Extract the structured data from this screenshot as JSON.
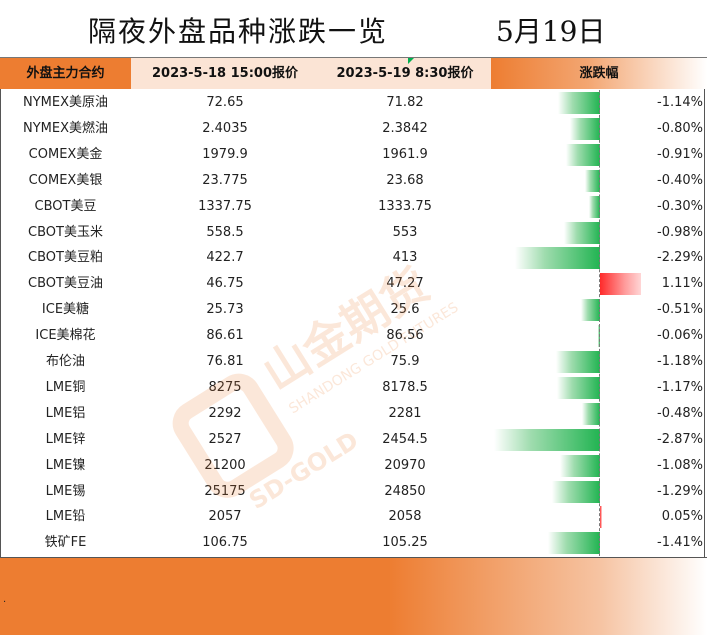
{
  "title": "隔夜外盘品种涨跌一览",
  "date": "5月19日",
  "footer_mark": ".",
  "watermark": {
    "brand": "山金期货",
    "sub": "SHANDONG GOLD FUTURES",
    "mark": "SD-GOLD"
  },
  "colors": {
    "header_orange": "#ed7d31",
    "header_peach": "#fbe4d5",
    "negative_green": "#22b452",
    "positive_red": "#ff2a2a"
  },
  "chart_data": {
    "type": "table",
    "columns": [
      "外盘主力合约",
      "2023-5-18 15:00报价",
      "2023-5-19 8:30报价",
      "涨跌幅"
    ],
    "rows": [
      {
        "name": "NYMEX美原油",
        "prev": "72.65",
        "curr": "71.82",
        "change": -1.14,
        "label": "-1.14%"
      },
      {
        "name": "NYMEX美燃油",
        "prev": "2.4035",
        "curr": "2.3842",
        "change": -0.8,
        "label": "-0.80%"
      },
      {
        "name": "COMEX美金",
        "prev": "1979.9",
        "curr": "1961.9",
        "change": -0.91,
        "label": "-0.91%"
      },
      {
        "name": "COMEX美银",
        "prev": "23.775",
        "curr": "23.68",
        "change": -0.4,
        "label": "-0.40%"
      },
      {
        "name": "CBOT美豆",
        "prev": "1337.75",
        "curr": "1333.75",
        "change": -0.3,
        "label": "-0.30%"
      },
      {
        "name": "CBOT美玉米",
        "prev": "558.5",
        "curr": "553",
        "change": -0.98,
        "label": "-0.98%"
      },
      {
        "name": "CBOT美豆粕",
        "prev": "422.7",
        "curr": "413",
        "change": -2.29,
        "label": "-2.29%"
      },
      {
        "name": "CBOT美豆油",
        "prev": "46.75",
        "curr": "47.27",
        "change": 1.11,
        "label": "1.11%"
      },
      {
        "name": "ICE美糖",
        "prev": "25.73",
        "curr": "25.6",
        "change": -0.51,
        "label": "-0.51%"
      },
      {
        "name": "ICE美棉花",
        "prev": "86.61",
        "curr": "86.56",
        "change": -0.06,
        "label": "-0.06%"
      },
      {
        "name": "布伦油",
        "prev": "76.81",
        "curr": "75.9",
        "change": -1.18,
        "label": "-1.18%"
      },
      {
        "name": "LME铜",
        "prev": "8275",
        "curr": "8178.5",
        "change": -1.17,
        "label": "-1.17%"
      },
      {
        "name": "LME铝",
        "prev": "2292",
        "curr": "2281",
        "change": -0.48,
        "label": "-0.48%"
      },
      {
        "name": "LME锌",
        "prev": "2527",
        "curr": "2454.5",
        "change": -2.87,
        "label": "-2.87%"
      },
      {
        "name": "LME镍",
        "prev": "21200",
        "curr": "20970",
        "change": -1.08,
        "label": "-1.08%"
      },
      {
        "name": "LME锡",
        "prev": "25175",
        "curr": "24850",
        "change": -1.29,
        "label": "-1.29%"
      },
      {
        "name": "LME铅",
        "prev": "2057",
        "curr": "2058",
        "change": 0.05,
        "label": "0.05%"
      },
      {
        "name": "铁矿FE",
        "prev": "106.75",
        "curr": "105.25",
        "change": -1.41,
        "label": "-1.41%"
      }
    ]
  }
}
